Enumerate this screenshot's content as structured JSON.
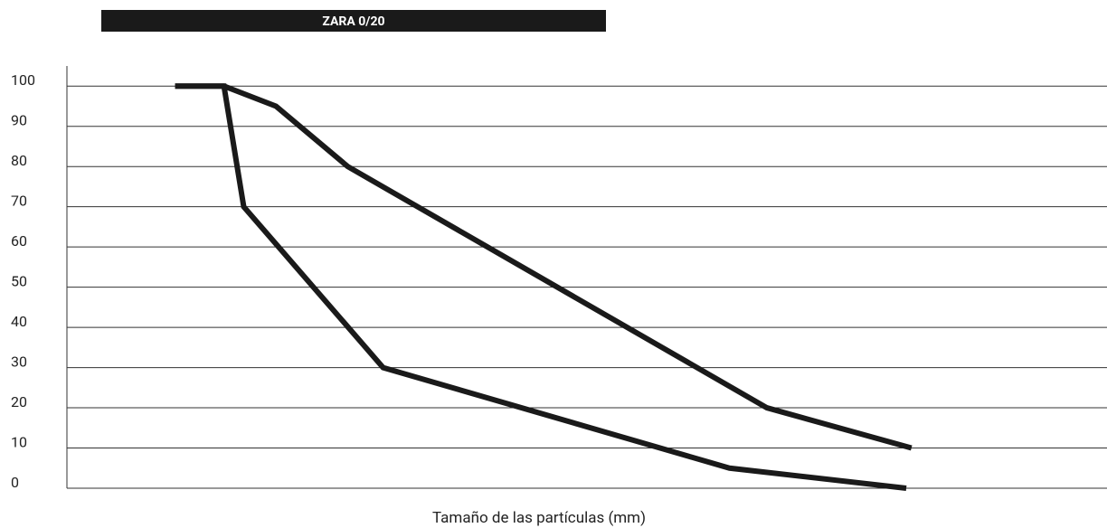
{
  "chart_data": {
    "type": "line",
    "title": "ZARA 0/20",
    "x_label": "Tamaño de las partículas (mm)",
    "xlim": [
      0,
      100
    ],
    "ylim": [
      0,
      105
    ],
    "yticks": [
      0,
      10,
      20,
      30,
      40,
      50,
      60,
      70,
      80,
      90,
      100
    ],
    "grid": true,
    "series": [
      {
        "color": "#1a1a1a",
        "x": [
          10.4,
          15.1,
          20.1,
          27,
          67.3,
          81.2
        ],
        "values": [
          100,
          100,
          95,
          80,
          20,
          10
        ]
      },
      {
        "color": "#1a1a1a",
        "x": [
          10.4,
          15.1,
          17,
          30.4,
          63.7,
          80.7
        ],
        "values": [
          100,
          100,
          70,
          30,
          5,
          0
        ]
      }
    ]
  }
}
